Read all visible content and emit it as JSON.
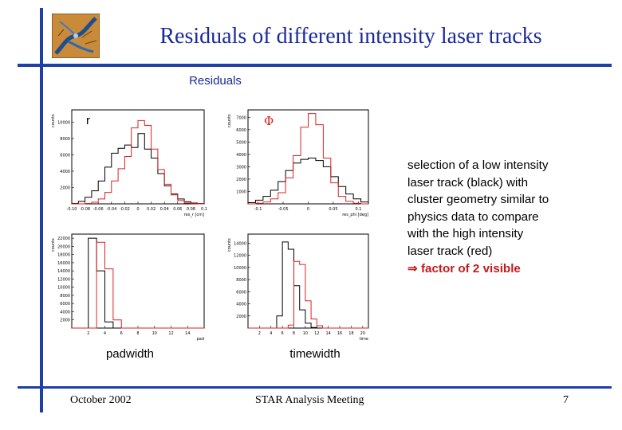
{
  "slide": {
    "title": "Residuals of different intensity laser tracks",
    "subtitle": "Residuals",
    "description_lines": [
      "selection of a low intensity",
      "laser track (black) with",
      "cluster geometry similar to",
      "physics data to compare",
      "with the high intensity",
      "laser track (red)"
    ],
    "conclusion": "⇒ factor of 2 visible",
    "footer": {
      "date": "October 2002",
      "meeting": "STAR Analysis Meeting",
      "page": "7"
    }
  },
  "colors": {
    "accent": "#1f3fa8",
    "title": "#1a2a9c",
    "low_intensity": "#000000",
    "high_intensity": "#dd2222"
  },
  "plots": {
    "r": {
      "label": "r"
    },
    "phi": {
      "label": "Φ"
    },
    "padwidth": {
      "caption": "padwidth"
    },
    "timewidth": {
      "caption": "timewidth"
    }
  },
  "chart_data": [
    {
      "type": "bar",
      "name": "r",
      "ylabel": "counts",
      "xlabel": "res_r [cm]",
      "x_ticks": [
        "-0.10",
        "-0.08",
        "-0.06",
        "-0.04",
        "-0.02",
        "0",
        "0.02",
        "0.04",
        "0.06",
        "0.08",
        "0.1"
      ],
      "y_ticks": [
        "2000",
        "4000",
        "6000",
        "8000",
        "10000"
      ],
      "xlim": [
        -0.1,
        0.1
      ],
      "ylim": [
        0,
        11500
      ],
      "series": [
        {
          "color": "#000000",
          "edges": [
            -0.1,
            -0.09,
            -0.08,
            -0.07,
            -0.06,
            -0.05,
            -0.04,
            -0.03,
            -0.02,
            -0.01,
            0,
            0.01,
            0.02,
            0.03,
            0.04,
            0.05,
            0.06,
            0.07,
            0.08,
            0.09,
            0.1
          ],
          "values": [
            50,
            300,
            800,
            1600,
            2800,
            4500,
            6200,
            6800,
            7200,
            6900,
            8600,
            6700,
            5600,
            3700,
            2200,
            1200,
            600,
            250,
            100,
            40
          ]
        },
        {
          "color": "#dd2222",
          "edges": [
            -0.1,
            -0.09,
            -0.08,
            -0.07,
            -0.06,
            -0.05,
            -0.04,
            -0.03,
            -0.02,
            -0.01,
            0,
            0.01,
            0.02,
            0.03,
            0.04,
            0.05,
            0.06,
            0.07,
            0.08,
            0.09,
            0.1
          ],
          "values": [
            0,
            0,
            50,
            200,
            600,
            1400,
            2800,
            4300,
            5800,
            9300,
            10200,
            9600,
            6700,
            4200,
            2400,
            1100,
            400,
            100,
            30,
            0
          ]
        }
      ]
    },
    {
      "type": "bar",
      "name": "phi",
      "ylabel": "counts",
      "xlabel": "res_phi [deg]",
      "x_ticks": [
        "-0.1",
        "-0.05",
        "0",
        "0.05",
        "0.1"
      ],
      "y_ticks": [
        "1000",
        "2000",
        "3000",
        "4000",
        "5000",
        "6000",
        "7000"
      ],
      "xlim": [
        -0.12,
        0.12
      ],
      "ylim": [
        0,
        7600
      ],
      "series": [
        {
          "color": "#000000",
          "edges": [
            -0.12,
            -0.105,
            -0.09,
            -0.075,
            -0.06,
            -0.045,
            -0.03,
            -0.015,
            0,
            0.015,
            0.03,
            0.045,
            0.06,
            0.075,
            0.09,
            0.105,
            0.12
          ],
          "values": [
            100,
            300,
            600,
            1100,
            1800,
            2700,
            3300,
            3600,
            3700,
            3500,
            3000,
            2200,
            1400,
            800,
            400,
            150
          ]
        },
        {
          "color": "#dd2222",
          "edges": [
            -0.12,
            -0.105,
            -0.09,
            -0.075,
            -0.06,
            -0.045,
            -0.03,
            -0.015,
            0,
            0.015,
            0.03,
            0.045,
            0.06,
            0.075,
            0.09,
            0.105,
            0.12
          ],
          "values": [
            0,
            50,
            150,
            400,
            900,
            2100,
            3900,
            6200,
            7300,
            6400,
            3700,
            1700,
            600,
            200,
            50,
            0
          ]
        }
      ]
    },
    {
      "type": "bar",
      "name": "padwidth",
      "ylabel": "counts",
      "xlabel": "pad",
      "x_ticks": [
        "2",
        "4",
        "6",
        "8",
        "10",
        "12",
        "14"
      ],
      "y_ticks": [
        "2000",
        "4000",
        "6000",
        "8000",
        "10000",
        "12000",
        "14000",
        "16000",
        "18000",
        "20000",
        "22000"
      ],
      "xlim": [
        0,
        16
      ],
      "ylim": [
        0,
        23000
      ],
      "series": [
        {
          "color": "#000000",
          "edges": [
            0,
            1,
            2,
            3,
            4,
            5,
            6,
            7,
            8,
            9,
            10,
            11,
            12,
            13,
            14,
            15,
            16
          ],
          "values": [
            0,
            0,
            22000,
            14000,
            1500,
            0,
            0,
            0,
            0,
            0,
            0,
            0,
            0,
            0,
            0,
            0
          ]
        },
        {
          "color": "#dd2222",
          "edges": [
            0,
            1,
            2,
            3,
            4,
            5,
            6,
            7,
            8,
            9,
            10,
            11,
            12,
            13,
            14,
            15,
            16
          ],
          "values": [
            0,
            0,
            0,
            21000,
            14500,
            2000,
            0,
            0,
            0,
            0,
            0,
            0,
            0,
            0,
            0,
            0
          ]
        }
      ]
    },
    {
      "type": "bar",
      "name": "timewidth",
      "ylabel": "counts",
      "xlabel": "time",
      "x_ticks": [
        "2",
        "4",
        "6",
        "8",
        "10",
        "12",
        "14",
        "16",
        "18",
        "20"
      ],
      "y_ticks": [
        "2000",
        "4000",
        "6000",
        "8000",
        "10000",
        "12000",
        "14000"
      ],
      "xlim": [
        0,
        21
      ],
      "ylim": [
        0,
        15500
      ],
      "series": [
        {
          "color": "#000000",
          "edges": [
            0,
            1,
            2,
            3,
            4,
            5,
            6,
            7,
            8,
            9,
            10,
            11,
            12,
            13,
            14,
            15,
            16,
            17,
            18,
            19,
            20,
            21
          ],
          "values": [
            0,
            0,
            0,
            0,
            0,
            2000,
            14200,
            13000,
            7000,
            3000,
            800,
            100,
            0,
            0,
            0,
            0,
            0,
            0,
            0,
            0,
            0
          ]
        },
        {
          "color": "#dd2222",
          "edges": [
            0,
            1,
            2,
            3,
            4,
            5,
            6,
            7,
            8,
            9,
            10,
            11,
            12,
            13,
            14,
            15,
            16,
            17,
            18,
            19,
            20,
            21
          ],
          "values": [
            0,
            0,
            0,
            0,
            0,
            0,
            0,
            500,
            11000,
            10500,
            4500,
            1500,
            400,
            0,
            0,
            0,
            0,
            0,
            0,
            0,
            0
          ]
        }
      ]
    }
  ]
}
